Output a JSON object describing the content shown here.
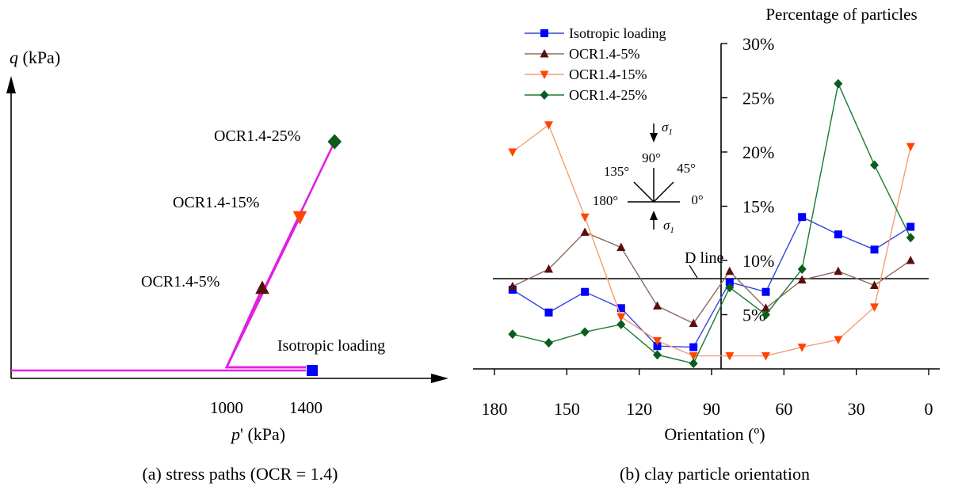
{
  "chart_data": [
    {
      "type": "line",
      "caption": "(a) stress paths (OCR = 1.4)",
      "xlabel_italic": "p",
      "xlabel_rest": "' (kPa)",
      "ylabel_italic": "q",
      "ylabel_rest": " (kPa)",
      "x_ticks": [
        "1000",
        "1400"
      ],
      "paths": [
        {
          "name": "Isotropic loading",
          "label": "Isotropic loading",
          "color": "#e020e0",
          "marker": "square",
          "marker_color": "#0000ff",
          "p": [
            0,
            1400
          ],
          "q": [
            0,
            0
          ]
        },
        {
          "name": "OCR1.4-5%",
          "label": "OCR1.4-5%",
          "color": "#e020e0",
          "marker": "triangle-up",
          "marker_color": "#5a0e0e",
          "p": [
            1400,
            1000,
            1180
          ],
          "q": [
            0,
            0,
            100
          ]
        },
        {
          "name": "OCR1.4-15%",
          "label": "OCR1.4-15%",
          "color": "#e020e0",
          "marker": "triangle-down",
          "marker_color": "#ff4500",
          "p": [
            1400,
            1000,
            1370
          ],
          "q": [
            0,
            0,
            190
          ]
        },
        {
          "name": "OCR1.4-25%",
          "label": "OCR1.4-25%",
          "color": "#e020e0",
          "marker": "diamond",
          "marker_color": "#0b5d1e",
          "p": [
            1400,
            1000,
            1545
          ],
          "q": [
            0,
            0,
            285
          ]
        }
      ]
    },
    {
      "type": "line",
      "caption": "(b) clay particle orientation",
      "xlabel": "Orientation (º)",
      "ylabel": "Percentage of particles",
      "xlim": [
        180,
        0
      ],
      "ylim": [
        0,
        30
      ],
      "x_ticks": [
        180,
        150,
        120,
        90,
        60,
        30,
        0
      ],
      "y_tick_labels": [
        "5%",
        "10%",
        "15%",
        "20%",
        "25%",
        "30%"
      ],
      "x": [
        172.5,
        157.5,
        142.5,
        127.5,
        112.5,
        97.5,
        82.5,
        67.5,
        52.5,
        37.5,
        22.5,
        7.5
      ],
      "series": [
        {
          "name": "Isotropic loading",
          "color": "#0000ff",
          "line_color": "#3344dd",
          "marker": "square",
          "values": [
            7.3,
            5.2,
            7.1,
            5.6,
            2.1,
            2.0,
            8.0,
            7.1,
            14.0,
            12.4,
            11.0,
            13.1
          ]
        },
        {
          "name": "OCR1.4-5%",
          "color": "#5a0e0e",
          "line_color": "#8a6a60",
          "marker": "triangle-up",
          "values": [
            7.6,
            9.2,
            12.6,
            11.2,
            5.8,
            4.2,
            9.0,
            5.6,
            8.2,
            9.0,
            7.7,
            10.0
          ]
        },
        {
          "name": "OCR1.4-15%",
          "color": "#ff4500",
          "line_color": "#f0a070",
          "marker": "triangle-down",
          "values": [
            20.0,
            22.5,
            14.0,
            4.8,
            2.6,
            1.2,
            1.2,
            1.2,
            2.0,
            2.7,
            5.7,
            20.5
          ]
        },
        {
          "name": "OCR1.4-25%",
          "color": "#0b5d1e",
          "line_color": "#1a7a2e",
          "marker": "diamond",
          "values": [
            3.2,
            2.4,
            3.4,
            4.1,
            1.3,
            0.5,
            7.5,
            5.0,
            9.2,
            26.3,
            18.8,
            12.1
          ]
        }
      ],
      "d_line": {
        "label": "D line",
        "value": 8.3
      },
      "inset": {
        "sigma": "σ",
        "sigma_sub": "1",
        "angles": [
          "90°",
          "135°",
          "45°",
          "180°",
          "0°"
        ]
      },
      "legend_position": "top-left"
    }
  ]
}
